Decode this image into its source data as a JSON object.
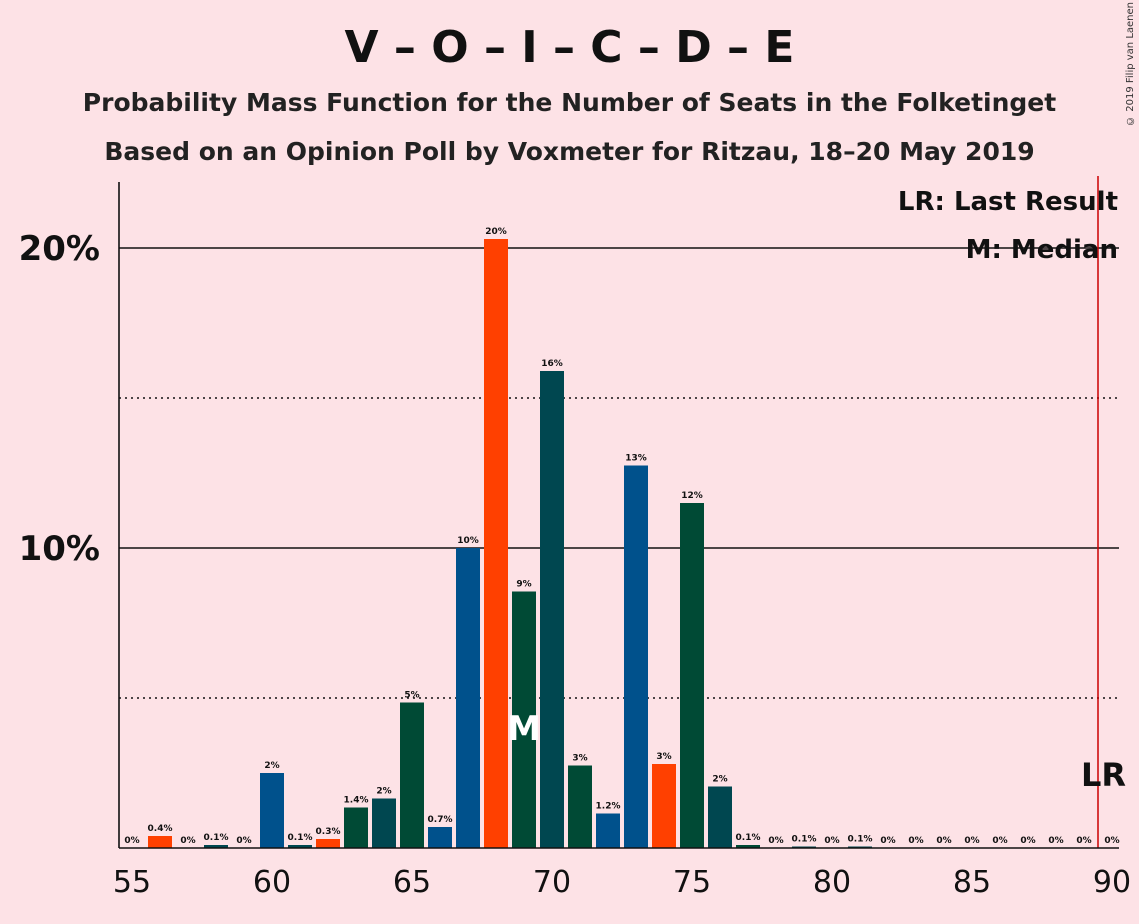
{
  "chart_data": {
    "type": "bar",
    "title": "V – O – I – C – D – E",
    "subtitle": "Probability Mass Function for the Number of Seats in the Folketinget",
    "subtitle2": "Based on an Opinion Poll by Voxmeter for Ritzau, 18–20 May 2019",
    "copyright": "© 2019 Filip van Laenen",
    "legend": {
      "last_result": "LR: Last Result",
      "median": "M: Median",
      "placement": "top-right"
    },
    "lr_label": "LR",
    "median_label": "M",
    "last_result_seat": 90,
    "median_seat": 69,
    "xlim": [
      55,
      90
    ],
    "ylim": [
      0,
      22
    ],
    "x_ticks": [
      55,
      60,
      65,
      70,
      75,
      80,
      85,
      90
    ],
    "y_ticks": [
      {
        "value": 10,
        "label": "10%",
        "style": "solid"
      },
      {
        "value": 20,
        "label": "20%",
        "style": "solid"
      }
    ],
    "y_minor_gridlines": [
      5,
      15
    ],
    "colors": {
      "blue": "#00518c",
      "orange": "#ff4000",
      "dark_teal": "#004750",
      "dark_green": "#004a35",
      "lr_line": "#cc0000"
    },
    "bars": [
      {
        "x": 55,
        "value": 0,
        "label": "0%",
        "color": "#004750"
      },
      {
        "x": 56,
        "value": 0.4,
        "label": "0.4%",
        "color": "#ff4000"
      },
      {
        "x": 57,
        "value": 0,
        "label": "0%",
        "color": "#004750"
      },
      {
        "x": 58,
        "value": 0.1,
        "label": "0.1%",
        "color": "#004750"
      },
      {
        "x": 59,
        "value": 0,
        "label": "0%",
        "color": "#004750"
      },
      {
        "x": 60,
        "value": 2.5,
        "label": "2%",
        "color": "#00518c"
      },
      {
        "x": 61,
        "value": 0.1,
        "label": "0.1%",
        "color": "#004750"
      },
      {
        "x": 62,
        "value": 0.3,
        "label": "0.3%",
        "color": "#ff4000"
      },
      {
        "x": 63,
        "value": 1.35,
        "label": "1.4%",
        "color": "#004a35"
      },
      {
        "x": 64,
        "value": 1.65,
        "label": "2%",
        "color": "#004750"
      },
      {
        "x": 65,
        "value": 4.85,
        "label": "5%",
        "color": "#004a35"
      },
      {
        "x": 66,
        "value": 0.7,
        "label": "0.7%",
        "color": "#00518c"
      },
      {
        "x": 67,
        "value": 10.0,
        "label": "10%",
        "color": "#00518c"
      },
      {
        "x": 68,
        "value": 20.3,
        "label": "20%",
        "color": "#ff4000"
      },
      {
        "x": 69,
        "value": 8.55,
        "label": "9%",
        "color": "#004a35"
      },
      {
        "x": 70,
        "value": 15.9,
        "label": "16%",
        "color": "#004750"
      },
      {
        "x": 71,
        "value": 2.75,
        "label": "3%",
        "color": "#004a35"
      },
      {
        "x": 72,
        "value": 1.15,
        "label": "1.2%",
        "color": "#00518c"
      },
      {
        "x": 73,
        "value": 12.75,
        "label": "13%",
        "color": "#00518c"
      },
      {
        "x": 74,
        "value": 2.8,
        "label": "3%",
        "color": "#ff4000"
      },
      {
        "x": 75,
        "value": 11.5,
        "label": "12%",
        "color": "#004a35"
      },
      {
        "x": 76,
        "value": 2.05,
        "label": "2%",
        "color": "#004750"
      },
      {
        "x": 77,
        "value": 0.1,
        "label": "0.1%",
        "color": "#004a35"
      },
      {
        "x": 78,
        "value": 0,
        "label": "0%",
        "color": "#004750"
      },
      {
        "x": 79,
        "value": 0.05,
        "label": "0.1%",
        "color": "#004750"
      },
      {
        "x": 80,
        "value": 0,
        "label": "0%",
        "color": "#004750"
      },
      {
        "x": 81,
        "value": 0.05,
        "label": "0.1%",
        "color": "#004750"
      },
      {
        "x": 82,
        "value": 0,
        "label": "0%",
        "color": "#004750"
      },
      {
        "x": 83,
        "value": 0,
        "label": "0%",
        "color": "#004750"
      },
      {
        "x": 84,
        "value": 0,
        "label": "0%",
        "color": "#004750"
      },
      {
        "x": 85,
        "value": 0,
        "label": "0%",
        "color": "#004750"
      },
      {
        "x": 86,
        "value": 0,
        "label": "0%",
        "color": "#004750"
      },
      {
        "x": 87,
        "value": 0,
        "label": "0%",
        "color": "#004750"
      },
      {
        "x": 88,
        "value": 0,
        "label": "0%",
        "color": "#004750"
      },
      {
        "x": 89,
        "value": 0,
        "label": "0%",
        "color": "#004750"
      },
      {
        "x": 90,
        "value": 0,
        "label": "0%",
        "color": "#004750"
      }
    ]
  }
}
